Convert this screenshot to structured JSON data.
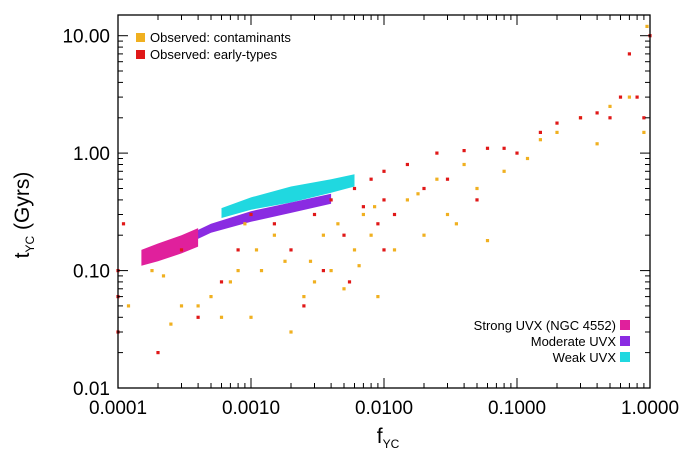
{
  "chart_data": {
    "type": "scatter",
    "xscale": "log",
    "yscale": "log",
    "xlim": [
      0.0001,
      1.0
    ],
    "ylim": [
      0.01,
      15.0
    ],
    "grid": false,
    "xlabel": {
      "main": "f",
      "sub": "YC"
    },
    "ylabel": {
      "main": "t",
      "sub": "YC",
      "unit": "(Gyrs)"
    },
    "x_ticks": [
      {
        "value": 0.0001,
        "label": "0.0001"
      },
      {
        "value": 0.001,
        "label": "0.0010"
      },
      {
        "value": 0.01,
        "label": "0.0100"
      },
      {
        "value": 0.1,
        "label": "0.1000"
      },
      {
        "value": 1.0,
        "label": "1.0000"
      }
    ],
    "y_ticks": [
      {
        "value": 0.01,
        "label": "0.01"
      },
      {
        "value": 0.1,
        "label": "0.10"
      },
      {
        "value": 1.0,
        "label": "1.00"
      },
      {
        "value": 10.0,
        "label": "10.00"
      }
    ],
    "legends": [
      {
        "placement": "top-left",
        "entries": [
          {
            "label": "Observed: contaminants",
            "color": "#f0b020"
          },
          {
            "label": "Observed: early-types",
            "color": "#e01818"
          }
        ]
      },
      {
        "placement": "bottom-right",
        "entries": [
          {
            "label": "Strong UVX (NGC 4552)",
            "color": "#e0209c"
          },
          {
            "label": "Moderate UVX",
            "color": "#8a2be2"
          },
          {
            "label": "Weak UVX",
            "color": "#20d8e0"
          }
        ]
      }
    ],
    "model_bands": [
      {
        "name": "Weak UVX",
        "color": "#20d8e0",
        "x": [
          0.0006,
          0.001,
          0.002,
          0.004,
          0.006
        ],
        "y_low": [
          0.28,
          0.33,
          0.38,
          0.46,
          0.52
        ],
        "y_high": [
          0.34,
          0.42,
          0.52,
          0.6,
          0.66
        ]
      },
      {
        "name": "Moderate UVX",
        "color": "#8a2be2",
        "x": [
          0.00016,
          0.0003,
          0.0005,
          0.001,
          0.002,
          0.004
        ],
        "y_low": [
          0.13,
          0.16,
          0.21,
          0.26,
          0.31,
          0.37
        ],
        "y_high": [
          0.15,
          0.19,
          0.25,
          0.32,
          0.38,
          0.45
        ]
      },
      {
        "name": "Strong UVX (NGC 4552)",
        "color": "#e0209c",
        "x": [
          0.00015,
          0.0002,
          0.0003,
          0.0004
        ],
        "y_low": [
          0.11,
          0.12,
          0.14,
          0.16
        ],
        "y_high": [
          0.15,
          0.17,
          0.2,
          0.23
        ]
      }
    ],
    "series": [
      {
        "name": "Observed: contaminants",
        "color": "#f0b020",
        "points": [
          [
            0.00012,
            0.05
          ],
          [
            0.00018,
            0.1
          ],
          [
            0.00022,
            0.09
          ],
          [
            0.00025,
            0.035
          ],
          [
            0.0003,
            0.05
          ],
          [
            0.0004,
            0.05
          ],
          [
            0.0005,
            0.06
          ],
          [
            0.0006,
            0.04
          ],
          [
            0.0007,
            0.08
          ],
          [
            0.0008,
            0.1
          ],
          [
            0.0009,
            0.25
          ],
          [
            0.001,
            0.04
          ],
          [
            0.0012,
            0.1
          ],
          [
            0.0015,
            0.2
          ],
          [
            0.0018,
            0.12
          ],
          [
            0.002,
            0.03
          ],
          [
            0.0025,
            0.06
          ],
          [
            0.003,
            0.08
          ],
          [
            0.0035,
            0.2
          ],
          [
            0.004,
            0.1
          ],
          [
            0.005,
            0.07
          ],
          [
            0.006,
            0.15
          ],
          [
            0.007,
            0.3
          ],
          [
            0.008,
            0.2
          ],
          [
            0.009,
            0.06
          ],
          [
            0.012,
            0.15
          ],
          [
            0.015,
            0.4
          ],
          [
            0.02,
            0.2
          ],
          [
            0.025,
            0.6
          ],
          [
            0.03,
            0.3
          ],
          [
            0.04,
            0.8
          ],
          [
            0.05,
            0.5
          ],
          [
            0.06,
            0.18
          ],
          [
            0.08,
            0.7
          ],
          [
            0.12,
            0.9
          ],
          [
            0.15,
            1.3
          ],
          [
            0.2,
            1.5
          ],
          [
            0.3,
            2.0
          ],
          [
            0.4,
            1.2
          ],
          [
            0.5,
            2.5
          ],
          [
            0.7,
            3.0
          ],
          [
            0.9,
            1.5
          ],
          [
            0.95,
            12.0
          ],
          [
            0.0011,
            0.15
          ],
          [
            0.0028,
            0.12
          ],
          [
            0.0045,
            0.25
          ],
          [
            0.0065,
            0.11
          ],
          [
            0.0085,
            0.35
          ],
          [
            0.018,
            0.45
          ],
          [
            0.035,
            0.25
          ]
        ]
      },
      {
        "name": "Observed: early-types",
        "color": "#e01818",
        "points": [
          [
            0.0001,
            0.03
          ],
          [
            0.0001,
            0.06
          ],
          [
            0.0001,
            0.1
          ],
          [
            0.00011,
            0.25
          ],
          [
            0.0002,
            0.02
          ],
          [
            0.0003,
            0.15
          ],
          [
            0.0004,
            0.04
          ],
          [
            0.0006,
            0.08
          ],
          [
            0.0008,
            0.15
          ],
          [
            0.001,
            0.3
          ],
          [
            0.0015,
            0.25
          ],
          [
            0.002,
            0.15
          ],
          [
            0.003,
            0.3
          ],
          [
            0.004,
            0.4
          ],
          [
            0.005,
            0.2
          ],
          [
            0.006,
            0.5
          ],
          [
            0.007,
            0.35
          ],
          [
            0.008,
            0.6
          ],
          [
            0.009,
            0.25
          ],
          [
            0.01,
            0.7
          ],
          [
            0.01,
            0.4
          ],
          [
            0.01,
            0.15
          ],
          [
            0.015,
            0.8
          ],
          [
            0.02,
            0.5
          ],
          [
            0.025,
            1.0
          ],
          [
            0.03,
            0.6
          ],
          [
            0.04,
            1.05
          ],
          [
            0.06,
            1.1
          ],
          [
            0.08,
            1.1
          ],
          [
            0.1,
            1.0
          ],
          [
            0.15,
            1.5
          ],
          [
            0.2,
            1.8
          ],
          [
            0.3,
            2.0
          ],
          [
            0.4,
            2.2
          ],
          [
            0.5,
            2.0
          ],
          [
            0.6,
            3.0
          ],
          [
            0.7,
            7.0
          ],
          [
            0.8,
            3.0
          ],
          [
            0.9,
            2.0
          ],
          [
            1.0,
            10.0
          ],
          [
            0.0025,
            0.05
          ],
          [
            0.0035,
            0.1
          ],
          [
            0.0055,
            0.08
          ],
          [
            0.012,
            0.3
          ],
          [
            0.05,
            0.4
          ]
        ]
      }
    ]
  }
}
